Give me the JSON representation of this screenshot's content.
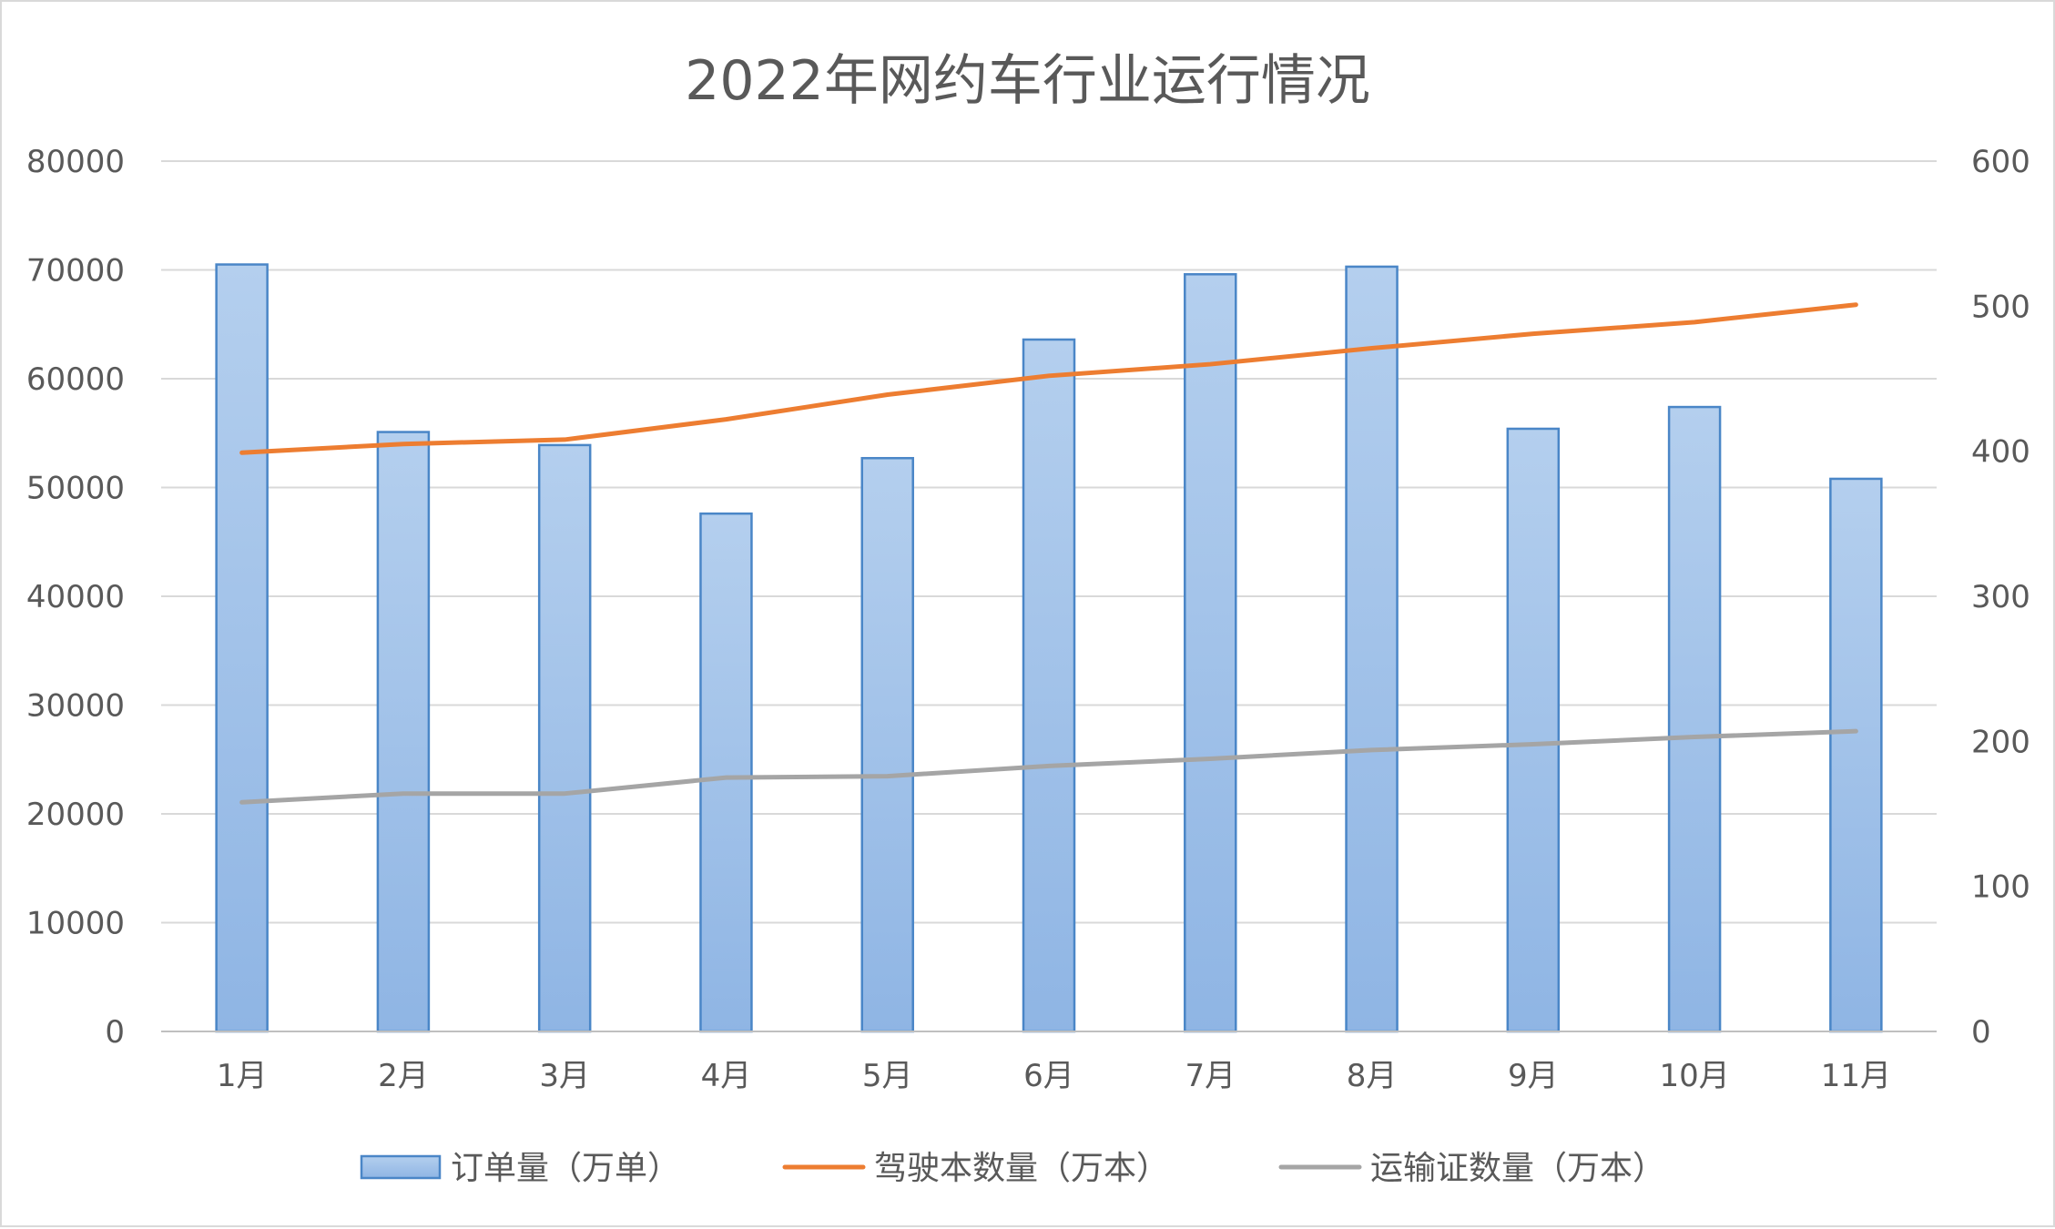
{
  "chart_data": {
    "type": "bar",
    "title": "2022年网约车行业运行情况",
    "categories": [
      "1月",
      "2月",
      "3月",
      "4月",
      "5月",
      "6月",
      "7月",
      "8月",
      "9月",
      "10月",
      "11月"
    ],
    "series": [
      {
        "name": "订单量（万单）",
        "type": "bar",
        "axis": "left",
        "color": "#9dc3e6",
        "values": [
          70500,
          55100,
          53900,
          47600,
          52700,
          63600,
          69600,
          70300,
          55400,
          57400,
          50800
        ]
      },
      {
        "name": "驾驶本数量（万本）",
        "type": "line",
        "axis": "right",
        "color": "#ed7d31",
        "values": [
          399,
          405,
          408,
          422,
          439,
          452,
          460,
          471,
          481,
          489,
          501
        ]
      },
      {
        "name": "运输证数量（万本）",
        "type": "line",
        "axis": "right",
        "color": "#a5a5a5",
        "values": [
          158,
          164,
          164,
          175,
          176,
          183,
          188,
          194,
          198,
          203,
          207
        ]
      }
    ],
    "y_left": {
      "ylim": [
        0,
        80000
      ],
      "ticks": [
        "0",
        "10000",
        "20000",
        "30000",
        "40000",
        "50000",
        "60000",
        "70000",
        "80000"
      ]
    },
    "y_right": {
      "ylim": [
        0,
        600
      ],
      "ticks": [
        "0",
        "100",
        "200",
        "300",
        "400",
        "500",
        "600"
      ]
    },
    "grid": true,
    "legend_position": "bottom"
  }
}
